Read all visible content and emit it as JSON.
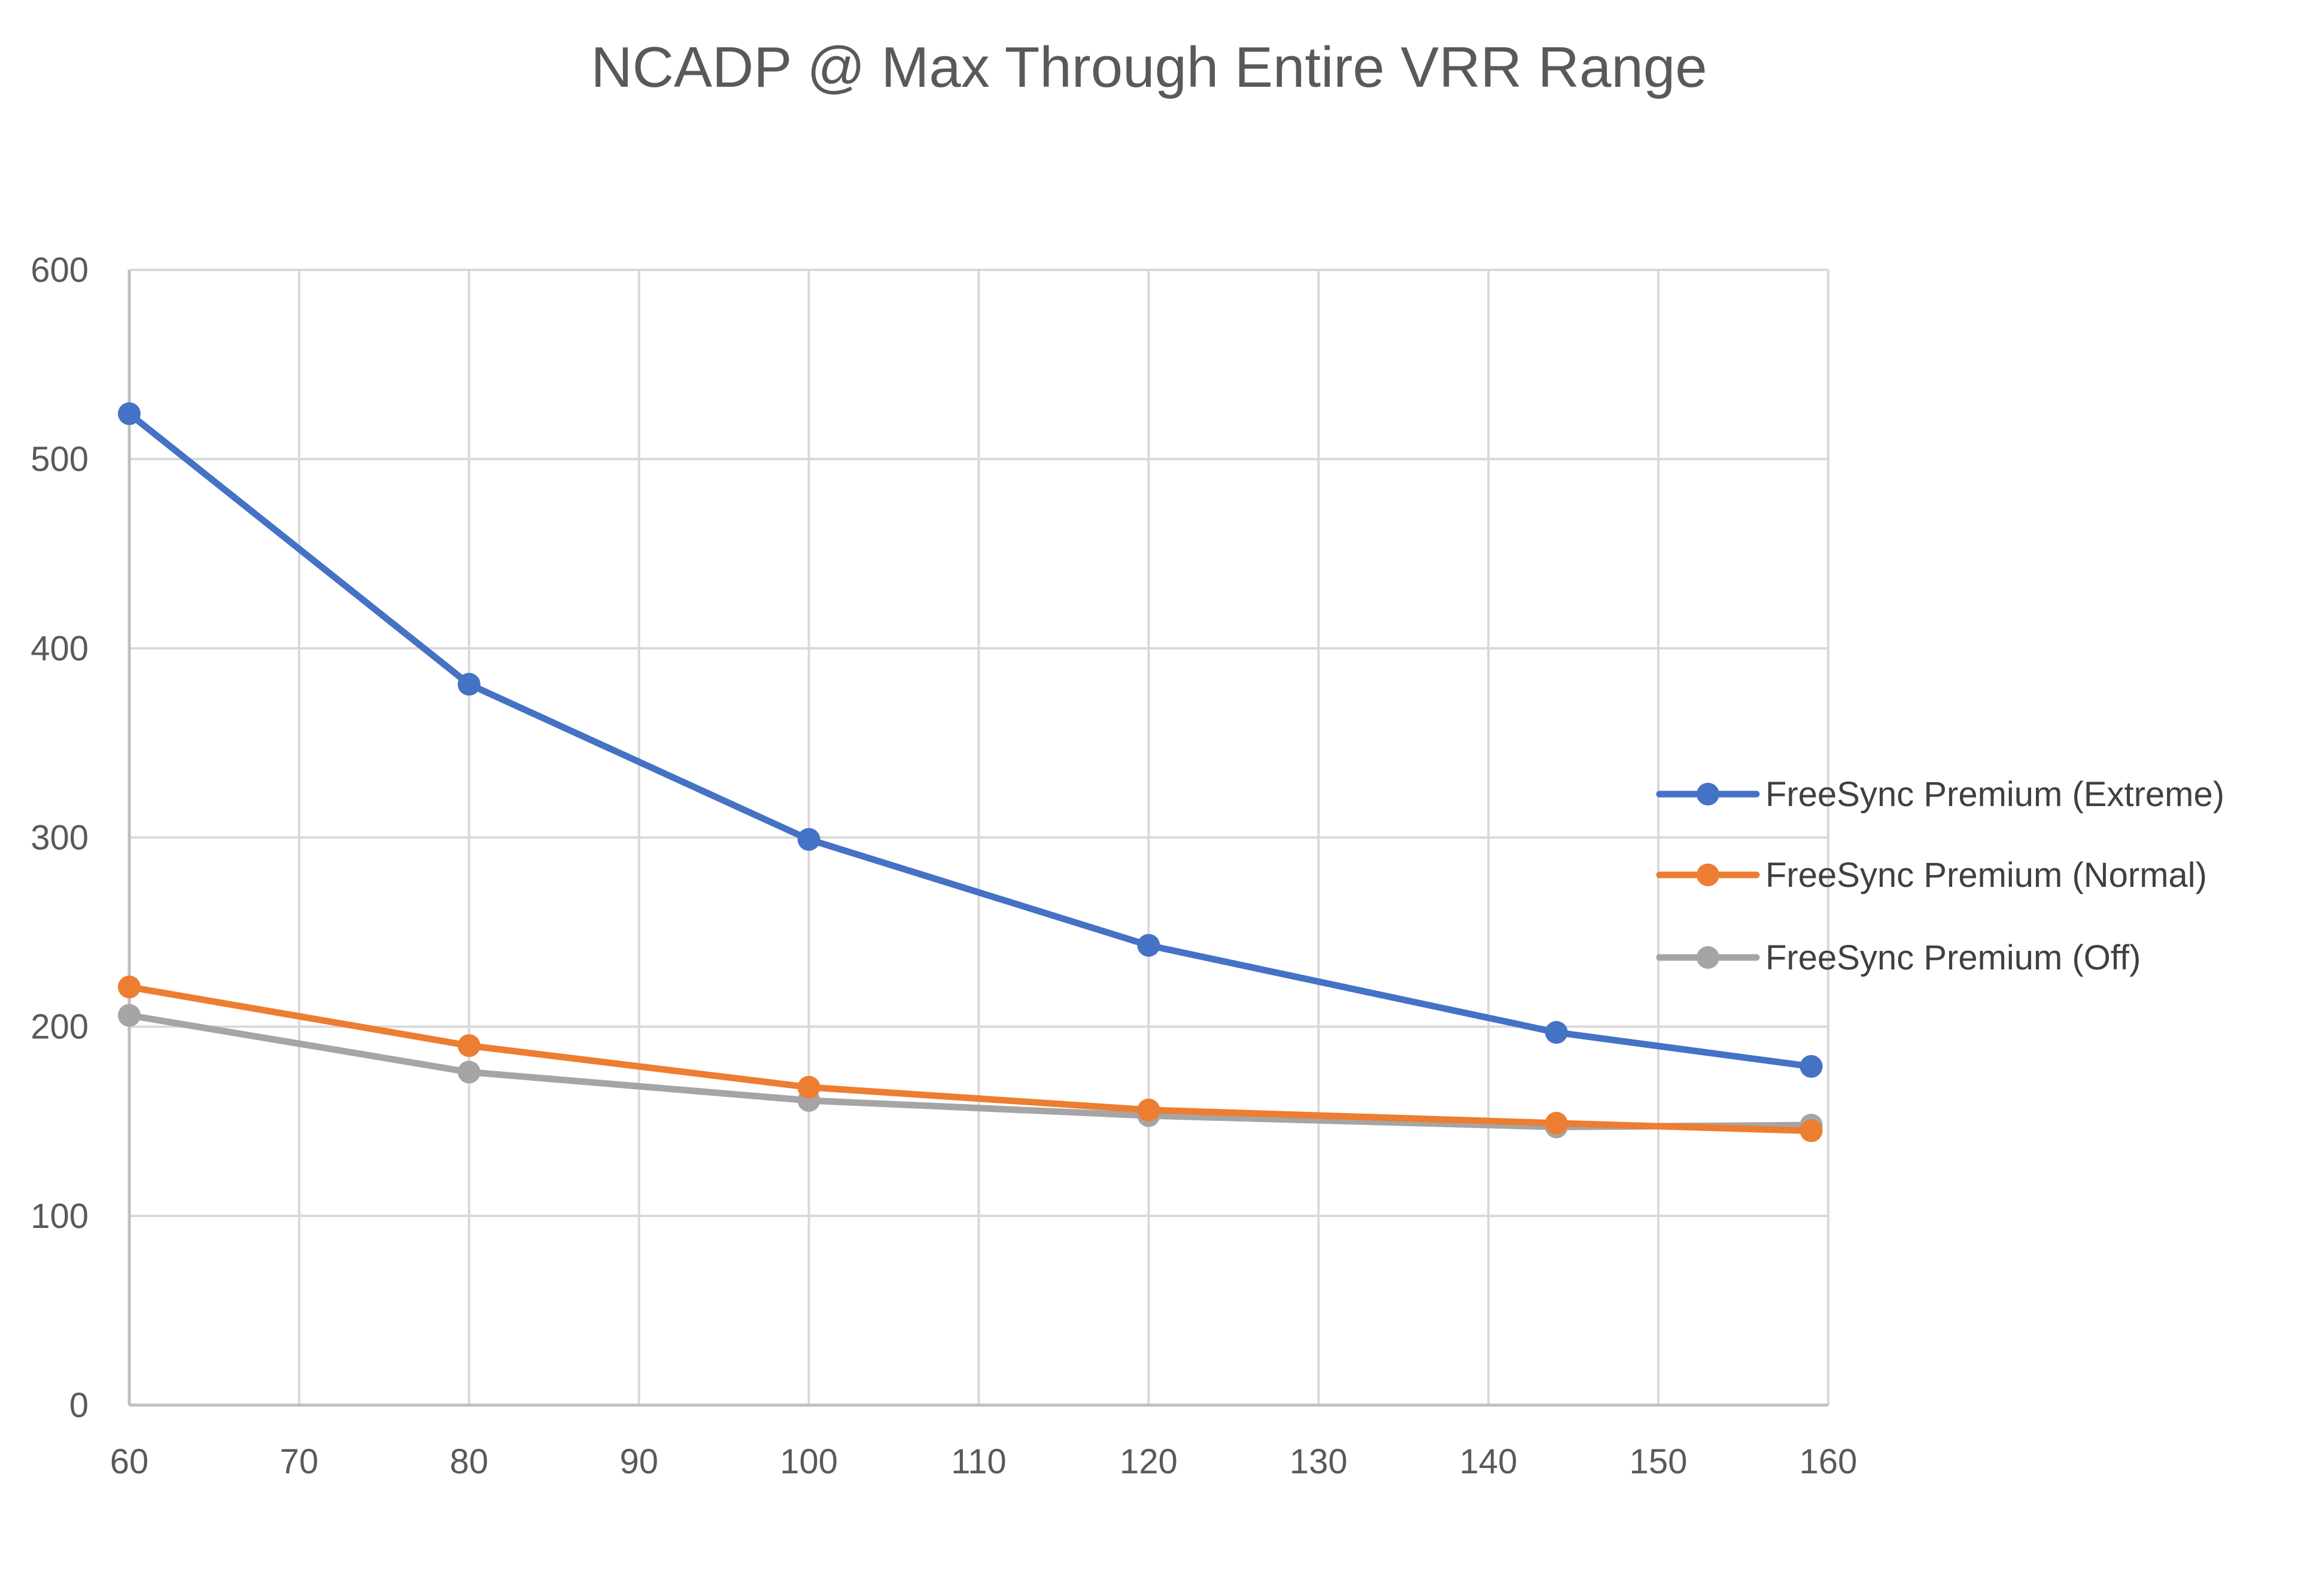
{
  "chart_data": {
    "type": "line",
    "title": "NCADP @ Max Through Entire VRR Range",
    "xlabel": "",
    "ylabel": "",
    "xlim": [
      60,
      160
    ],
    "ylim": [
      0,
      600
    ],
    "x_ticks": [
      60,
      70,
      80,
      90,
      100,
      110,
      120,
      130,
      140,
      150,
      160
    ],
    "y_ticks": [
      0,
      100,
      200,
      300,
      400,
      500,
      600
    ],
    "grid": true,
    "legend_position": "right",
    "x": [
      60,
      80,
      100,
      120,
      144,
      159
    ],
    "series": [
      {
        "name": "FreeSync Premium (Extreme)",
        "color": "#4472C4",
        "values": [
          524,
          381,
          299,
          243,
          197,
          179
        ]
      },
      {
        "name": "FreeSync Premium (Normal)",
        "color": "#ED7D31",
        "values": [
          221,
          190,
          168,
          156,
          149,
          145
        ]
      },
      {
        "name": "FreeSync Premium (Off)",
        "color": "#A5A5A5",
        "values": [
          206,
          176,
          161,
          153,
          147,
          148
        ]
      }
    ]
  }
}
